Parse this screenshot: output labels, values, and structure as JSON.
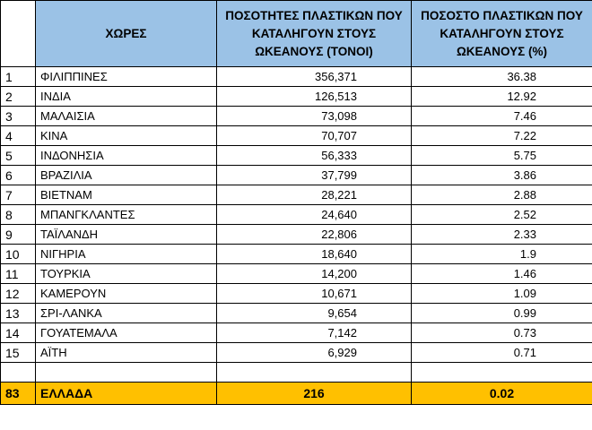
{
  "headers": {
    "rank": "",
    "country": "ΧΩΡΕΣ",
    "tons": "ΠΟΣΟΤΗΤΕΣ ΠΛΑΣΤΙΚΩΝ ΠΟΥ ΚΑΤΑΛΗΓΟΥΝ ΣΤΟΥΣ ΩΚΕΑΝΟΥΣ (ΤΟΝΟΙ)",
    "pct": "ΠΟΣΟΣΤΟ ΠΛΑΣΤΙΚΩΝ ΠΟΥ ΚΑΤΑΛΗΓΟΥΝ ΣΤΟΥΣ ΩΚΕΑΝΟΥΣ (%)"
  },
  "rows": [
    {
      "rank": "1",
      "country": "ΦΙΛΙΠΠΙΝΕΣ",
      "tons": "356,371",
      "pct": "36.38"
    },
    {
      "rank": "2",
      "country": "ΙΝΔΙΑ",
      "tons": "126,513",
      "pct": "12.92"
    },
    {
      "rank": "3",
      "country": "ΜΑΛΑΙΣΙΑ",
      "tons": "73,098",
      "pct": "7.46"
    },
    {
      "rank": "4",
      "country": "ΚΙΝΑ",
      "tons": "70,707",
      "pct": "7.22"
    },
    {
      "rank": "5",
      "country": "ΙΝΔΟΝΗΣΙΑ",
      "tons": "56,333",
      "pct": "5.75"
    },
    {
      "rank": "6",
      "country": "ΒΡΑΖΙΛΙΑ",
      "tons": "37,799",
      "pct": "3.86"
    },
    {
      "rank": "7",
      "country": "ΒΙΕΤΝΑΜ",
      "tons": "28,221",
      "pct": "2.88"
    },
    {
      "rank": "8",
      "country": "ΜΠΑΝΓΚΛΑΝΤΕΣ",
      "tons": "24,640",
      "pct": "2.52"
    },
    {
      "rank": "9",
      "country": "ΤΑΪΛΑΝΔΗ",
      "tons": "22,806",
      "pct": "2.33"
    },
    {
      "rank": "10",
      "country": "ΝΙΓΗΡΙΑ",
      "tons": "18,640",
      "pct": "1.9"
    },
    {
      "rank": "11",
      "country": "ΤΟΥΡΚΙΑ",
      "tons": "14,200",
      "pct": "1.46"
    },
    {
      "rank": "12",
      "country": "ΚΑΜΕΡΟΥΝ",
      "tons": "10,671",
      "pct": "1.09"
    },
    {
      "rank": "13",
      "country": "ΣΡΙ-ΛΑΝΚΑ",
      "tons": "9,654",
      "pct": "0.99"
    },
    {
      "rank": "14",
      "country": "ΓΟΥΑΤΕΜΑΛΑ",
      "tons": "7,142",
      "pct": "0.73"
    },
    {
      "rank": "15",
      "country": "ΑΪΤΗ",
      "tons": "6,929",
      "pct": "0.71"
    }
  ],
  "greece": {
    "rank": "83",
    "country": "ΕΛΛΑΔΑ",
    "tons": "216",
    "pct": "0.02"
  },
  "colors": {
    "header_fill": "#9bc2e6",
    "highlight_fill": "#ffc000",
    "grid": "#000000"
  }
}
